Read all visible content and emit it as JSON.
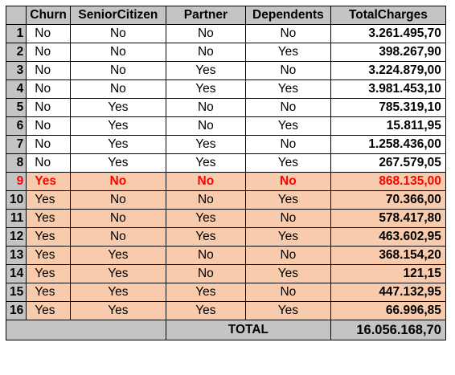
{
  "headers": [
    "Churn",
    "SeniorCitizen",
    "Partner",
    "Dependents",
    "TotalCharges"
  ],
  "rows": [
    {
      "idx": "1",
      "churn": "No",
      "senior": "No",
      "partner": "No",
      "dependents": "No",
      "total": "3.261.495,70"
    },
    {
      "idx": "2",
      "churn": "No",
      "senior": "No",
      "partner": "No",
      "dependents": "Yes",
      "total": "398.267,90"
    },
    {
      "idx": "3",
      "churn": "No",
      "senior": "No",
      "partner": "Yes",
      "dependents": "No",
      "total": "3.224.879,00"
    },
    {
      "idx": "4",
      "churn": "No",
      "senior": "No",
      "partner": "Yes",
      "dependents": "Yes",
      "total": "3.981.453,10"
    },
    {
      "idx": "5",
      "churn": "No",
      "senior": "Yes",
      "partner": "No",
      "dependents": "No",
      "total": "785.319,10"
    },
    {
      "idx": "6",
      "churn": "No",
      "senior": "Yes",
      "partner": "No",
      "dependents": "Yes",
      "total": "15.811,95"
    },
    {
      "idx": "7",
      "churn": "No",
      "senior": "Yes",
      "partner": "Yes",
      "dependents": "No",
      "total": "1.258.436,00"
    },
    {
      "idx": "8",
      "churn": "No",
      "senior": "Yes",
      "partner": "Yes",
      "dependents": "Yes",
      "total": "267.579,05"
    },
    {
      "idx": "9",
      "churn": "Yes",
      "senior": "No",
      "partner": "No",
      "dependents": "No",
      "total": "868.135,00"
    },
    {
      "idx": "10",
      "churn": "Yes",
      "senior": "No",
      "partner": "No",
      "dependents": "Yes",
      "total": "70.366,00"
    },
    {
      "idx": "11",
      "churn": "Yes",
      "senior": "No",
      "partner": "Yes",
      "dependents": "No",
      "total": "578.417,80"
    },
    {
      "idx": "12",
      "churn": "Yes",
      "senior": "No",
      "partner": "Yes",
      "dependents": "Yes",
      "total": "463.602,95"
    },
    {
      "idx": "13",
      "churn": "Yes",
      "senior": "Yes",
      "partner": "No",
      "dependents": "No",
      "total": "368.154,20"
    },
    {
      "idx": "14",
      "churn": "Yes",
      "senior": "Yes",
      "partner": "No",
      "dependents": "Yes",
      "total": "121,15"
    },
    {
      "idx": "15",
      "churn": "Yes",
      "senior": "Yes",
      "partner": "Yes",
      "dependents": "No",
      "total": "447.132,95"
    },
    {
      "idx": "16",
      "churn": "Yes",
      "senior": "Yes",
      "partner": "Yes",
      "dependents": "Yes",
      "total": "66.996,85"
    }
  ],
  "footer": {
    "label": "TOTAL",
    "value": "16.056.168,70"
  },
  "colors": {
    "header_gray": "#c4c4c4",
    "peach": "#f8cbad",
    "highlight_red": "#ff0000"
  }
}
